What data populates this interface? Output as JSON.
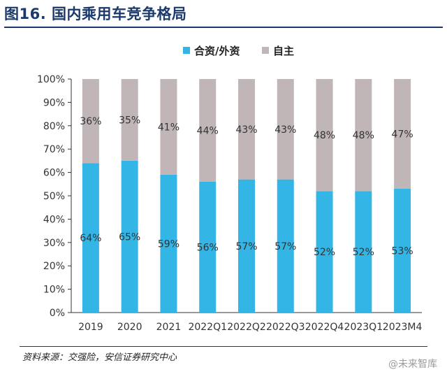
{
  "figure_title": "图16. 国内乘用车竞争格局",
  "source_note": "资料来源：交强险，安信证券研究中心",
  "watermark": "@未来智库",
  "colors": {
    "jv": "#33b5e5",
    "domestic": "#c0b6b7",
    "title": "#1b3a6b"
  },
  "chart_data": {
    "type": "bar",
    "stacked": true,
    "percent": true,
    "categories": [
      "2019",
      "2020",
      "2021",
      "2022Q1",
      "2022Q2",
      "2022Q3",
      "2022Q4",
      "2023Q1",
      "2023M4"
    ],
    "series": [
      {
        "name": "合资/外资",
        "values": [
          64,
          65,
          59,
          56,
          57,
          57,
          52,
          52,
          53
        ],
        "labels": [
          "64%",
          "65%",
          "59%",
          "56%",
          "57%",
          "57%",
          "52%",
          "52%",
          "53%"
        ]
      },
      {
        "name": "自主",
        "values": [
          36,
          35,
          41,
          44,
          43,
          43,
          48,
          48,
          47
        ],
        "labels": [
          "36%",
          "35%",
          "41%",
          "44%",
          "43%",
          "43%",
          "48%",
          "48%",
          "47%"
        ]
      }
    ],
    "y_ticks": [
      "0%",
      "10%",
      "20%",
      "30%",
      "40%",
      "50%",
      "60%",
      "70%",
      "80%",
      "90%",
      "100%"
    ],
    "ylim": [
      0,
      100
    ],
    "legend_position": "top-center",
    "grid": false
  }
}
